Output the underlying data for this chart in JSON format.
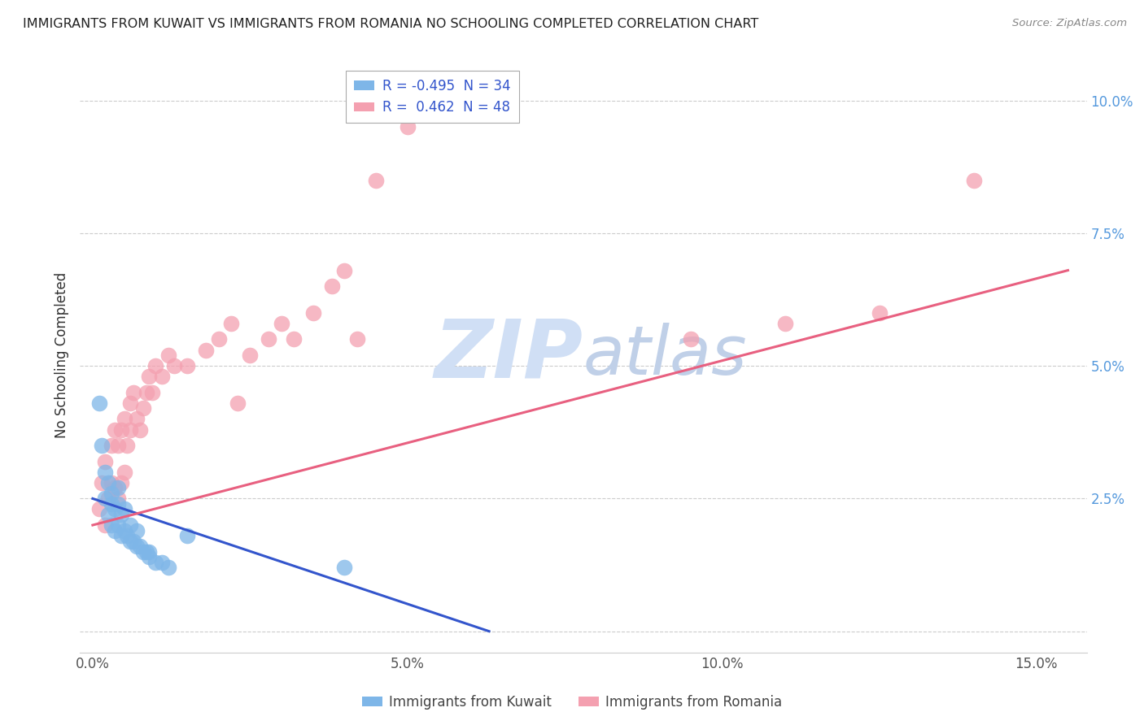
{
  "title": "IMMIGRANTS FROM KUWAIT VS IMMIGRANTS FROM ROMANIA NO SCHOOLING COMPLETED CORRELATION CHART",
  "source": "Source: ZipAtlas.com",
  "ylabel": "No Schooling Completed",
  "x_ticks": [
    0.0,
    5.0,
    10.0,
    15.0
  ],
  "x_tick_labels": [
    "0.0%",
    "5.0%",
    "10.0%",
    "15.0%"
  ],
  "y_ticks": [
    0.0,
    2.5,
    5.0,
    7.5,
    10.0
  ],
  "y_tick_labels": [
    "",
    "2.5%",
    "5.0%",
    "7.5%",
    "10.0%"
  ],
  "xlim": [
    -0.2,
    15.8
  ],
  "ylim": [
    -0.4,
    10.8
  ],
  "kuwait_R": -0.495,
  "kuwait_N": 34,
  "romania_R": 0.462,
  "romania_N": 48,
  "kuwait_color": "#7eb6e8",
  "romania_color": "#f4a0b0",
  "kuwait_line_color": "#3355cc",
  "romania_line_color": "#e86080",
  "watermark_zip": "ZIP",
  "watermark_atlas": "atlas",
  "watermark_color_zip": "#d0dff5",
  "watermark_color_atlas": "#c0d0e8",
  "legend_label_kuwait": "Immigrants from Kuwait",
  "legend_label_romania": "Immigrants from Romania",
  "kuwait_x": [
    0.1,
    0.15,
    0.2,
    0.2,
    0.25,
    0.25,
    0.3,
    0.3,
    0.3,
    0.35,
    0.35,
    0.4,
    0.4,
    0.4,
    0.45,
    0.45,
    0.5,
    0.5,
    0.55,
    0.6,
    0.6,
    0.65,
    0.7,
    0.7,
    0.75,
    0.8,
    0.85,
    0.9,
    0.9,
    1.0,
    1.1,
    1.2,
    1.5,
    4.0
  ],
  "kuwait_y": [
    4.3,
    3.5,
    2.5,
    3.0,
    2.2,
    2.8,
    2.0,
    2.4,
    2.6,
    1.9,
    2.3,
    2.0,
    2.4,
    2.7,
    1.8,
    2.2,
    1.9,
    2.3,
    1.8,
    1.7,
    2.0,
    1.7,
    1.6,
    1.9,
    1.6,
    1.5,
    1.5,
    1.4,
    1.5,
    1.3,
    1.3,
    1.2,
    1.8,
    1.2
  ],
  "romania_x": [
    0.1,
    0.15,
    0.2,
    0.2,
    0.25,
    0.3,
    0.3,
    0.35,
    0.35,
    0.4,
    0.4,
    0.45,
    0.45,
    0.5,
    0.5,
    0.55,
    0.6,
    0.6,
    0.65,
    0.7,
    0.75,
    0.8,
    0.85,
    0.9,
    0.95,
    1.0,
    1.1,
    1.2,
    1.3,
    1.5,
    1.8,
    2.0,
    2.2,
    2.5,
    2.8,
    3.0,
    3.2,
    3.5,
    3.8,
    4.0,
    4.2,
    4.5,
    5.0,
    9.5,
    11.0,
    12.5,
    14.0,
    2.3
  ],
  "romania_y": [
    2.3,
    2.8,
    2.0,
    3.2,
    2.5,
    2.8,
    3.5,
    2.7,
    3.8,
    2.5,
    3.5,
    2.8,
    3.8,
    3.0,
    4.0,
    3.5,
    3.8,
    4.3,
    4.5,
    4.0,
    3.8,
    4.2,
    4.5,
    4.8,
    4.5,
    5.0,
    4.8,
    5.2,
    5.0,
    5.0,
    5.3,
    5.5,
    5.8,
    5.2,
    5.5,
    5.8,
    5.5,
    6.0,
    6.5,
    6.8,
    5.5,
    8.5,
    9.5,
    5.5,
    5.8,
    6.0,
    8.5,
    4.3
  ],
  "kuwait_line_x": [
    0.0,
    6.3
  ],
  "kuwait_line_y": [
    2.5,
    0.0
  ],
  "romania_line_x": [
    0.0,
    15.5
  ],
  "romania_line_y": [
    2.0,
    6.8
  ]
}
